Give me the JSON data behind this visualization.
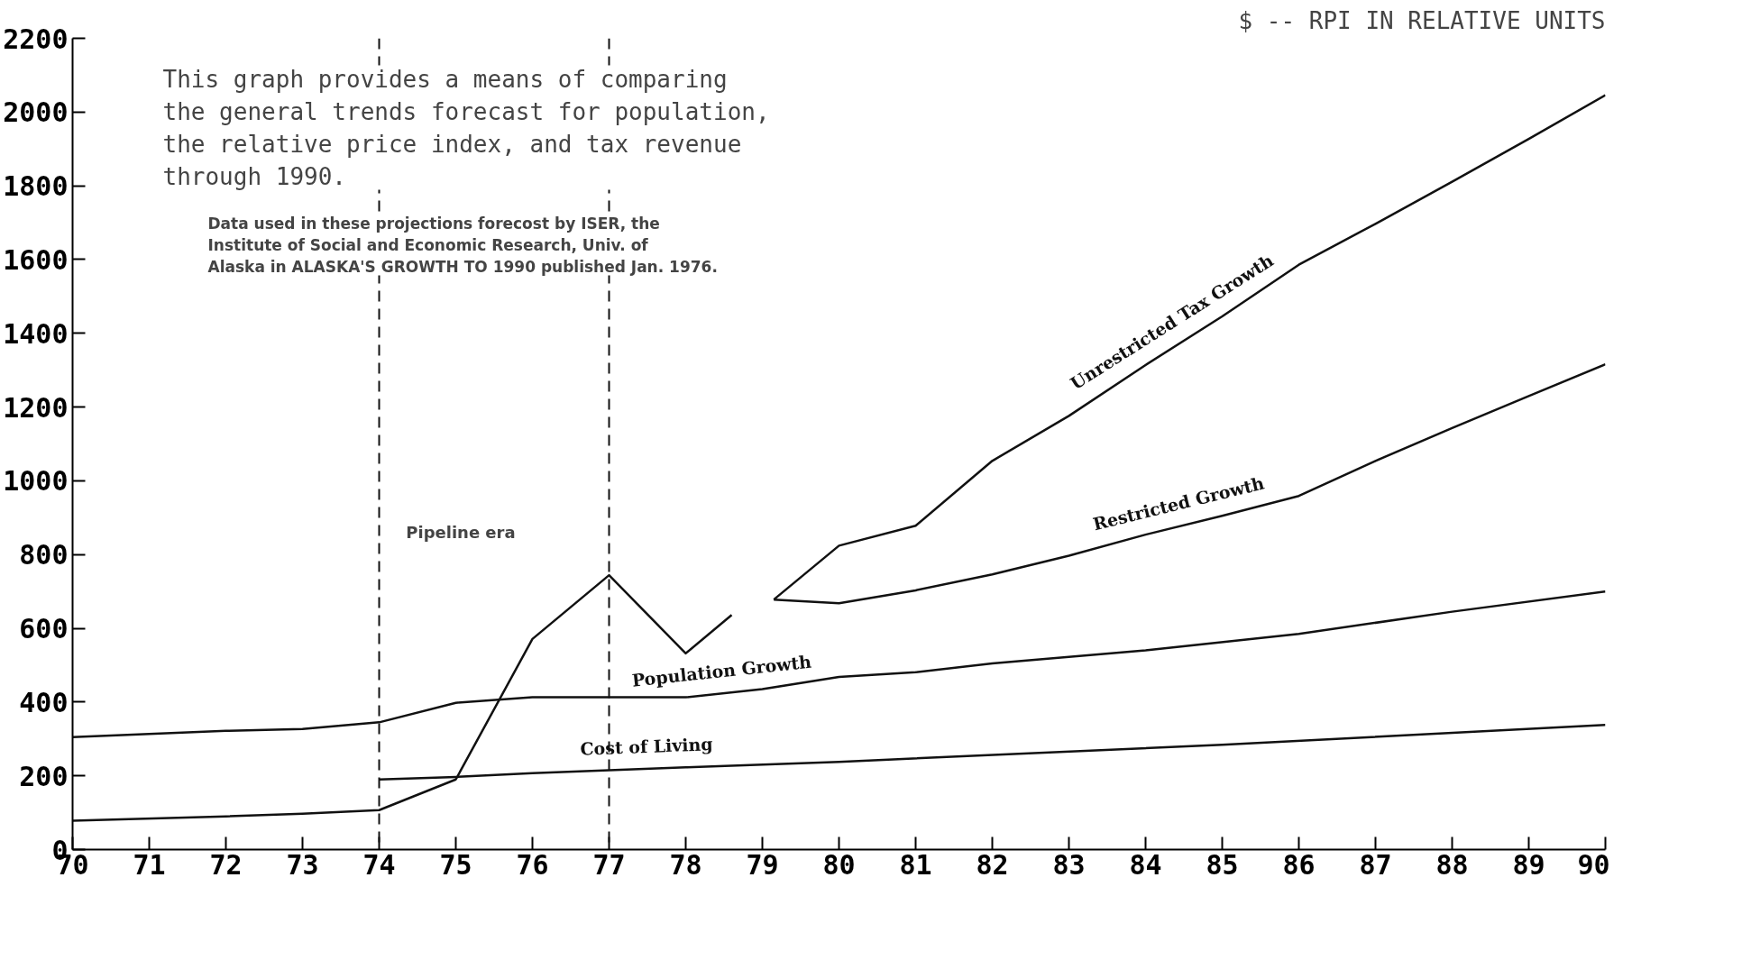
{
  "chart_data": {
    "type": "line",
    "title": "$ -- RPI IN RELATIVE UNITS",
    "xlim": [
      70,
      90
    ],
    "ylim": [
      0,
      2200
    ],
    "xticks": [
      70,
      71,
      72,
      73,
      74,
      75,
      76,
      77,
      78,
      79,
      80,
      81,
      82,
      83,
      84,
      85,
      86,
      87,
      88,
      89,
      90
    ],
    "yticks": [
      0,
      200,
      400,
      600,
      800,
      1000,
      1200,
      1400,
      1600,
      1800,
      2000,
      2200
    ],
    "grid": false,
    "legend": false,
    "marker": "none",
    "line_style": "solid",
    "series": [
      {
        "color": "#111111",
        "x": [
          70,
          72,
          73,
          74,
          75,
          76,
          77,
          78,
          78.6
        ],
        "values": [
          78,
          90,
          97,
          107,
          190,
          571,
          744,
          532,
          636
        ]
      },
      {
        "name": "Unrestricted Tax Growth",
        "color": "#111111",
        "x": [
          79.15,
          80,
          81,
          82,
          83,
          84,
          85,
          86,
          87,
          88,
          89,
          90
        ],
        "values": [
          678,
          824,
          878,
          1054,
          1176,
          1314,
          1446,
          1586,
          1697,
          1811,
          1927,
          2046
        ]
      },
      {
        "name": "Restricted Growth",
        "color": "#111111",
        "x": [
          79.15,
          80,
          81,
          82,
          83,
          84,
          85,
          86,
          87,
          88,
          89,
          90
        ],
        "values": [
          678,
          668,
          703,
          746,
          797,
          854,
          905,
          959,
          1054,
          1143,
          1230,
          1316
        ]
      },
      {
        "name": "Population Growth",
        "color": "#111111",
        "x": [
          70,
          72,
          73,
          74,
          75,
          76,
          77,
          78,
          79,
          80,
          81,
          82,
          84,
          86,
          88,
          90
        ],
        "values": [
          305,
          322,
          327,
          345,
          398,
          413,
          413,
          413,
          435,
          468,
          481,
          505,
          540,
          585,
          645,
          700
        ]
      },
      {
        "name": "Cost of Living",
        "color": "#111111",
        "x": [
          74,
          75,
          76,
          77,
          78,
          80,
          85,
          90
        ],
        "values": [
          190,
          197,
          207,
          215,
          223,
          238,
          284,
          338
        ]
      }
    ],
    "ref_lines": [
      {
        "axis": "x",
        "value": 74,
        "line_style": "dashed",
        "color": "#111111"
      },
      {
        "axis": "x",
        "value": 77,
        "line_style": "dashed",
        "color": "#111111"
      }
    ],
    "annotations": [
      "This graph provides a means of comparing\nthe general trends forecast for population,\nthe relative price index, and tax revenue\nthrough 1990.",
      "Data used in these projections forecost by ISER, the\nInstitute of Social and Economic Research, Univ. of\nAlaska in ALASKA'S GROWTH TO 1990 published Jan. 1976.",
      "Pipeline era"
    ]
  }
}
